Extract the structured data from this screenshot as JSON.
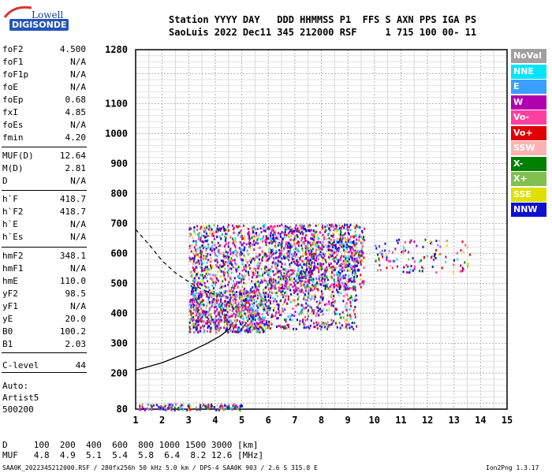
{
  "logo": {
    "line1": "Lowell",
    "line2": "DIGISONDE"
  },
  "header": {
    "line1": "Station YYYY DAY   DDD HHMMSS P1  FFS S AXN PPS IGA PS",
    "line2": "SaoLuis 2022 Dec11 345 212000 RSF     1 715 100 00- 11"
  },
  "params": [
    {
      "name": "foF2",
      "value": "4.500"
    },
    {
      "name": "foF1",
      "value": "N/A"
    },
    {
      "name": "foF1p",
      "value": "N/A"
    },
    {
      "name": "foE",
      "value": "N/A"
    },
    {
      "name": "foEp",
      "value": "0.68"
    },
    {
      "name": "fxI",
      "value": "4.85"
    },
    {
      "name": "foEs",
      "value": "N/A"
    },
    {
      "name": "fmin",
      "value": "4.20"
    },
    {
      "name": "MUF(D)",
      "value": "12.64"
    },
    {
      "name": "M(D)",
      "value": "2.81"
    },
    {
      "name": "D",
      "value": "N/A"
    },
    {
      "name": "h`F",
      "value": "418.7"
    },
    {
      "name": "h`F2",
      "value": "418.7"
    },
    {
      "name": "h`E",
      "value": "N/A"
    },
    {
      "name": "h`Es",
      "value": "N/A"
    },
    {
      "name": "hmF2",
      "value": "348.1"
    },
    {
      "name": "hmF1",
      "value": "N/A"
    },
    {
      "name": "hmE",
      "value": "110.0"
    },
    {
      "name": "yF2",
      "value": "98.5"
    },
    {
      "name": "yF1",
      "value": "N/A"
    },
    {
      "name": "yE",
      "value": "20.0"
    },
    {
      "name": "B0",
      "value": "100.2"
    },
    {
      "name": "B1",
      "value": "2.03"
    },
    {
      "name": "C-level",
      "value": "44"
    }
  ],
  "auto": {
    "line1": "Auto:",
    "line2": "Artist5",
    "line3": "500200"
  },
  "footer": {
    "d_row": "D     100  200  400  600  800 1000 1500 3000 [km]",
    "muf_row": "MUF   4.8  4.9  5.1  5.4  5.8  6.4  8.2 12.6 [MHz]",
    "file_info": "SAA0K_2022345212000.RSF / 280fx256h 50 kHz 5.0 km / DPS-4 SAA0K 903 / 2.6 S 315.8 E",
    "version": "Ion2Png 1.3.17"
  },
  "legend": [
    {
      "label": "NoVal",
      "color": "#a0a0a0"
    },
    {
      "label": "NNE",
      "color": "#00e5ff"
    },
    {
      "label": "E",
      "color": "#3aa0ff"
    },
    {
      "label": "W",
      "color": "#b000b0"
    },
    {
      "label": "Vo-",
      "color": "#ff3fa0"
    },
    {
      "label": "Vo+",
      "color": "#e00000"
    },
    {
      "label": "SSW",
      "color": "#ffb0b0"
    },
    {
      "label": "X-",
      "color": "#008000"
    },
    {
      "label": "X+",
      "color": "#80c050"
    },
    {
      "label": "SSE",
      "color": "#e0e000"
    },
    {
      "label": "NNW",
      "color": "#1010d0"
    }
  ],
  "chart_data": {
    "type": "scatter",
    "title": "",
    "xlabel": "",
    "ylabel": "",
    "xlim": [
      1,
      15
    ],
    "ylim": [
      80,
      1280
    ],
    "x_ticks": [
      "1",
      "2",
      "3",
      "4",
      "5",
      "6",
      "7",
      "8",
      "9",
      "10",
      "11",
      "12",
      "13",
      "14",
      "15"
    ],
    "y_ticks": [
      "80",
      "200",
      "300",
      "400",
      "500",
      "600",
      "700",
      "800",
      "900",
      "1000",
      "1100",
      "1280"
    ],
    "y_tick_values": [
      80,
      200,
      300,
      400,
      500,
      600,
      700,
      800,
      900,
      1000,
      1100,
      1280
    ],
    "grid": true,
    "echo_clusters": [
      {
        "name": "E-layer traces",
        "x": [
          1.1,
          5.0
        ],
        "y": [
          80,
          100
        ]
      },
      {
        "name": "F trace lower",
        "x": [
          3.0,
          6.0
        ],
        "y": [
          340,
          480
        ]
      },
      {
        "name": "F trace upper",
        "x": [
          3.0,
          9.6
        ],
        "y": [
          480,
          700
        ]
      },
      {
        "name": "F scatter",
        "x": [
          6.0,
          9.3
        ],
        "y": [
          350,
          700
        ]
      },
      {
        "name": "far spread",
        "x": [
          10.0,
          13.6
        ],
        "y": [
          540,
          650
        ]
      }
    ],
    "profile_curve": [
      [
        1.0,
        210
      ],
      [
        2.0,
        235
      ],
      [
        3.0,
        270
      ],
      [
        3.7,
        300
      ],
      [
        4.2,
        325
      ],
      [
        4.5,
        345
      ],
      [
        4.6,
        355
      ]
    ],
    "dashed_curve": [
      [
        1.0,
        680
      ],
      [
        1.5,
        630
      ],
      [
        2.0,
        575
      ],
      [
        2.5,
        535
      ],
      [
        3.0,
        505
      ],
      [
        3.5,
        480
      ],
      [
        4.0,
        462
      ]
    ]
  }
}
